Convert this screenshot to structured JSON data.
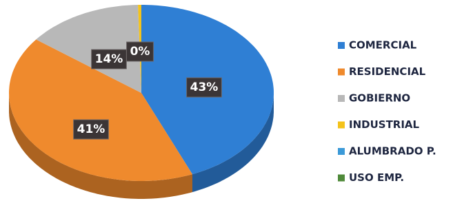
{
  "chart_data": {
    "type": "pie",
    "categories": [
      "COMERCIAL",
      "RESIDENCIAL",
      "GOBIERNO",
      "INDUSTRIAL",
      "ALUMBRADO P.",
      "USO EMP."
    ],
    "values": [
      43,
      41,
      14,
      0.4,
      0,
      0
    ],
    "value_labels": [
      "43%",
      "41%",
      "14%",
      "0%",
      null,
      null
    ],
    "colors": [
      "#2f7fd4",
      "#ef8a2d",
      "#b8b8b8",
      "#f4c31b",
      "#3c9ad8",
      "#4f8a3a"
    ],
    "legend": "right"
  }
}
